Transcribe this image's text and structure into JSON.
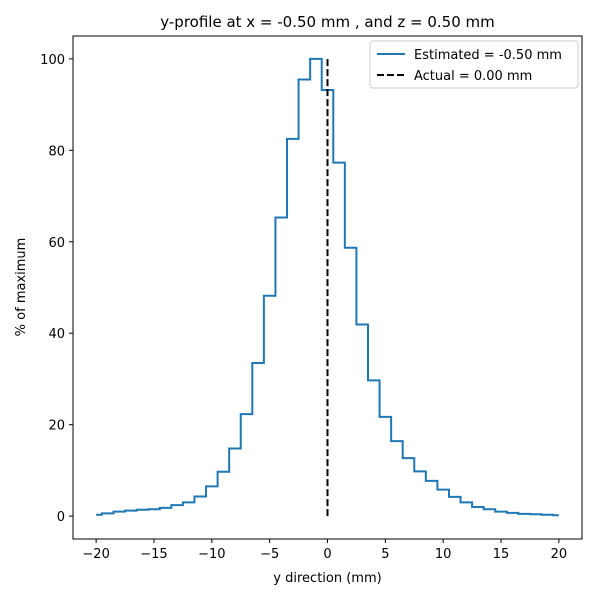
{
  "chart_data": {
    "type": "line",
    "drawstyle": "steps-mid",
    "title": "y-profile at x = -0.50 mm , and z = 0.50 mm",
    "xlabel": "y direction (mm)",
    "ylabel": "% of maximum",
    "xlim": [
      -22,
      22
    ],
    "ylim": [
      -5,
      105
    ],
    "xticks": [
      -20,
      -15,
      -10,
      -5,
      0,
      5,
      10,
      15,
      20
    ],
    "xtick_labels": [
      "−20",
      "−15",
      "−10",
      "−5",
      "0",
      "5",
      "10",
      "15",
      "20"
    ],
    "yticks": [
      0,
      20,
      40,
      60,
      80,
      100
    ],
    "ytick_labels": [
      "0",
      "20",
      "40",
      "60",
      "80",
      "100"
    ],
    "grid": false,
    "legend_position": "upper right",
    "series": [
      {
        "name": "Estimated = -0.50 mm",
        "color": "#1f77b4",
        "style": "solid",
        "x": [
          -20,
          -19,
          -18,
          -17,
          -16,
          -15,
          -14,
          -13,
          -12,
          -11,
          -10,
          -9,
          -8,
          -7,
          -6,
          -5,
          -4,
          -3,
          -2,
          -1,
          0,
          1,
          2,
          3,
          4,
          5,
          6,
          7,
          8,
          9,
          10,
          11,
          12,
          13,
          14,
          15,
          16,
          17,
          18,
          19,
          20
        ],
        "y": [
          0.3,
          0.6,
          1.0,
          1.2,
          1.4,
          1.5,
          1.8,
          2.4,
          3.0,
          4.3,
          6.5,
          9.7,
          14.8,
          22.3,
          33.5,
          48.2,
          65.3,
          82.5,
          95.5,
          100.0,
          93.2,
          77.3,
          58.7,
          41.9,
          29.7,
          21.7,
          16.4,
          12.7,
          9.8,
          7.7,
          5.8,
          4.2,
          3.0,
          2.0,
          1.5,
          1.0,
          0.7,
          0.5,
          0.4,
          0.3,
          0.2
        ]
      },
      {
        "name": "Actual = 0.00 mm",
        "color": "#000000",
        "style": "dashed",
        "x": [
          0,
          0
        ],
        "y": [
          0,
          100
        ]
      }
    ]
  }
}
